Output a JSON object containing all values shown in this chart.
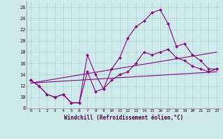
{
  "xlabel": "Windchill (Refroidissement éolien,°C)",
  "bg_color": "#ceeaea",
  "line_color": "#880088",
  "xlim": [
    -0.5,
    23.5
  ],
  "ylim": [
    8,
    27
  ],
  "yticks": [
    8,
    10,
    12,
    14,
    16,
    18,
    20,
    22,
    24,
    26
  ],
  "xticks": [
    0,
    1,
    2,
    3,
    4,
    5,
    6,
    7,
    8,
    9,
    10,
    11,
    12,
    13,
    14,
    15,
    16,
    17,
    18,
    19,
    20,
    21,
    22,
    23
  ],
  "series": [
    {
      "x": [
        0,
        1,
        2,
        3,
        4,
        5,
        6,
        7,
        8,
        9,
        10,
        11,
        12,
        13,
        14,
        15,
        16,
        17,
        18,
        19,
        20,
        21,
        22,
        23
      ],
      "y": [
        13,
        12,
        10.5,
        10,
        10.5,
        9,
        9,
        14.5,
        11,
        11.5,
        13,
        14,
        14.5,
        16,
        18,
        17.5,
        18,
        18.5,
        17,
        16.5,
        15.5,
        15,
        14.5,
        15
      ],
      "marker": true,
      "dashed": false
    },
    {
      "x": [
        0,
        1,
        2,
        3,
        4,
        5,
        6,
        7,
        8,
        9,
        10,
        11,
        12,
        13,
        14,
        15,
        16,
        17,
        18,
        19,
        20,
        21,
        22,
        23
      ],
      "y": [
        13,
        12,
        10.5,
        10,
        10.5,
        9,
        9,
        17.5,
        14,
        11.5,
        15,
        17,
        20.5,
        22.5,
        23.5,
        25,
        25.5,
        23,
        19,
        19.5,
        17.5,
        16.5,
        15,
        15
      ],
      "marker": true,
      "dashed": false
    },
    {
      "x": [
        0,
        23
      ],
      "y": [
        12.5,
        18
      ],
      "marker": false,
      "dashed": false
    },
    {
      "x": [
        0,
        23
      ],
      "y": [
        12.5,
        14.5
      ],
      "marker": false,
      "dashed": false
    }
  ]
}
